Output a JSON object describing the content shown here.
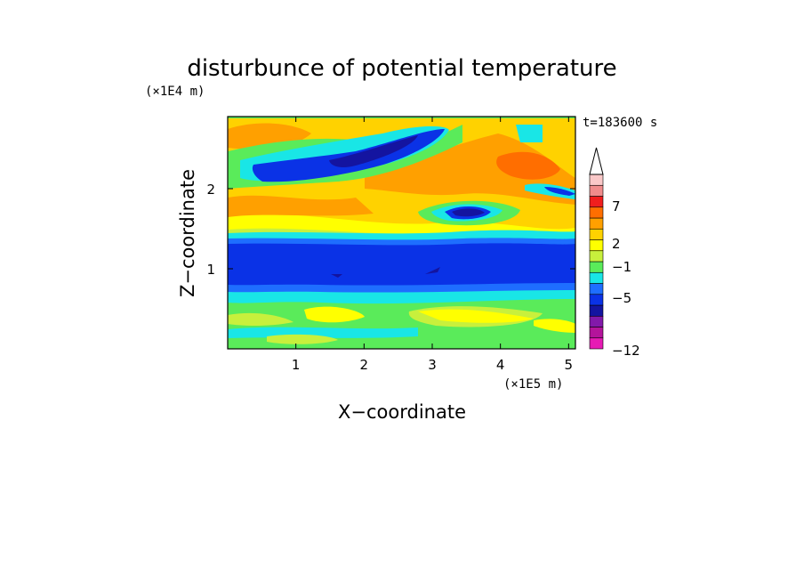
{
  "chart_data": {
    "type": "heatmap",
    "title": "disturbunce of potential temperature",
    "xlabel": "X−coordinate",
    "ylabel": "Z−coordinate",
    "x_unit": "(×1E5 m)",
    "y_unit": "(×1E4 m)",
    "time_label": "t=183600 s",
    "xlim": [
      0,
      5.1
    ],
    "ylim": [
      0,
      2.9
    ],
    "x_ticks": [
      1,
      2,
      3,
      4,
      5
    ],
    "y_ticks": [
      1,
      2
    ],
    "colorbar": {
      "levels": [
        -12,
        -11,
        -9,
        -7,
        -5,
        -3,
        -1,
        0,
        1,
        2,
        3,
        5,
        7,
        9,
        11
      ],
      "colors": [
        "#e61ab4",
        "#b4149b",
        "#8219aa",
        "#1414a0",
        "#0a32e6",
        "#1e6eff",
        "#19e6e6",
        "#5aeb5a",
        "#c8f03c",
        "#ffff00",
        "#ffd200",
        "#ffa000",
        "#ff6e00",
        "#f01e1e",
        "#f08c8c",
        "#fac8c8"
      ],
      "tick_labels": [
        "7",
        "2",
        "−1",
        "−5",
        "−12"
      ],
      "extend": "max"
    }
  }
}
